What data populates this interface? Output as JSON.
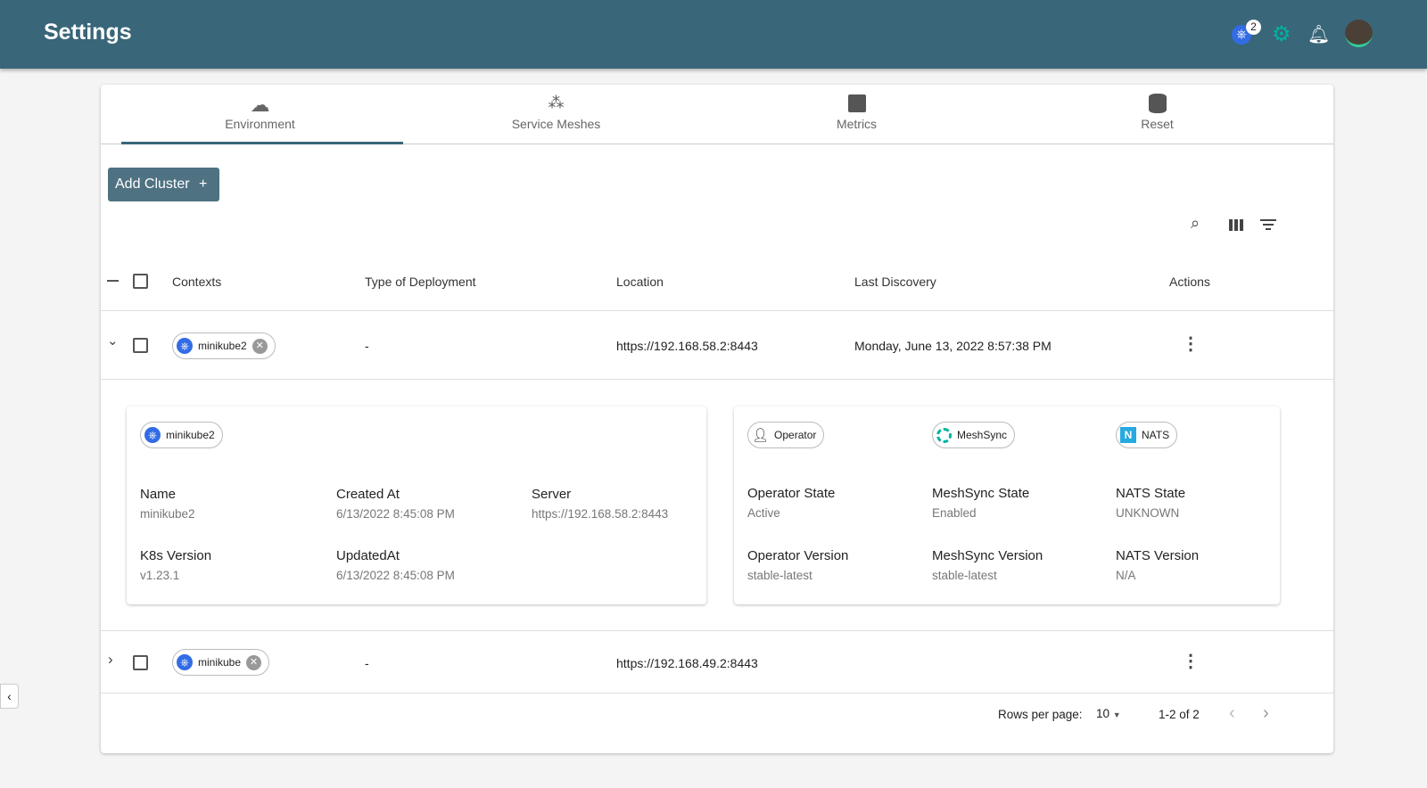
{
  "header": {
    "title": "Settings",
    "notification_count": "2"
  },
  "tabs": [
    {
      "label": "Environment",
      "icon": "cloud-icon"
    },
    {
      "label": "Service Meshes",
      "icon": "mesh-icon"
    },
    {
      "label": "Metrics",
      "icon": "chart-icon"
    },
    {
      "label": "Reset",
      "icon": "database-icon"
    }
  ],
  "add_cluster": "Add Cluster",
  "columns": [
    "Contexts",
    "Type of Deployment",
    "Location",
    "Last Discovery",
    "Actions"
  ],
  "rows": [
    {
      "context": "minikube2",
      "deployment": "-",
      "location": "https://192.168.58.2:8443",
      "last_discovery": "Monday, June 13, 2022 8:57:38 PM",
      "expanded": true
    },
    {
      "context": "minikube",
      "deployment": "-",
      "location": "https://192.168.49.2:8443",
      "last_discovery": "",
      "expanded": false
    }
  ],
  "details": {
    "chip": "minikube2",
    "name_label": "Name",
    "name": "minikube2",
    "created_label": "Created At",
    "created": "6/13/2022 8:45:08 PM",
    "server_label": "Server",
    "server": "https://192.168.58.2:8443",
    "k8s_label": "K8s Version",
    "k8s": "v1.23.1",
    "updated_label": "UpdatedAt",
    "updated": "6/13/2022 8:45:08 PM",
    "operator_chip": "Operator",
    "meshsync_chip": "MeshSync",
    "nats_chip": "NATS",
    "op_state_label": "Operator State",
    "op_state": "Active",
    "ms_state_label": "MeshSync State",
    "ms_state": "Enabled",
    "nats_state_label": "NATS State",
    "nats_state": "UNKNOWN",
    "op_ver_label": "Operator Version",
    "op_ver": "stable-latest",
    "ms_ver_label": "MeshSync Version",
    "ms_ver": "stable-latest",
    "nats_ver_label": "NATS Version",
    "nats_ver": "N/A"
  },
  "pagination": {
    "rows_label": "Rows per page:",
    "rows_value": "10",
    "range": "1-2 of 2"
  }
}
